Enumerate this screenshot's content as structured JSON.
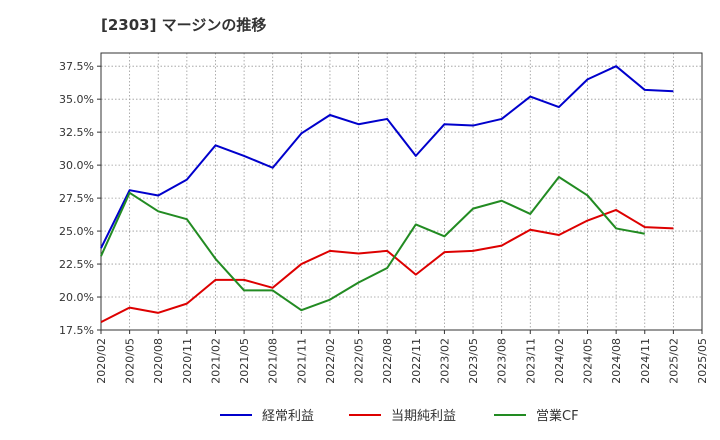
{
  "header": {
    "title": "[2303]  マージンの推移"
  },
  "chart_data": {
    "type": "line",
    "title": "[2303]  マージンの推移",
    "xlabel": "",
    "ylabel": "",
    "x": [
      "2020/02",
      "2020/05",
      "2020/08",
      "2020/11",
      "2021/02",
      "2021/05",
      "2021/08",
      "2021/11",
      "2022/02",
      "2022/05",
      "2022/08",
      "2022/11",
      "2023/02",
      "2023/05",
      "2023/08",
      "2023/11",
      "2024/02",
      "2024/05",
      "2024/08",
      "2024/11",
      "2025/02",
      "2025/05"
    ],
    "ylim": [
      17.5,
      38.5
    ],
    "yticks": [
      "17.5%",
      "20.0%",
      "22.5%",
      "25.0%",
      "27.5%",
      "30.0%",
      "32.5%",
      "35.0%",
      "37.5%"
    ],
    "ytick_values": [
      17.5,
      20.0,
      22.5,
      25.0,
      27.5,
      30.0,
      32.5,
      35.0,
      37.5
    ],
    "grid": true,
    "legend_position": "bottom",
    "series": [
      {
        "name": "経常利益",
        "color": "#0000cc",
        "values": [
          23.7,
          28.1,
          27.7,
          28.9,
          31.5,
          30.7,
          29.8,
          32.4,
          33.8,
          33.1,
          33.5,
          30.7,
          33.1,
          33.0,
          33.5,
          35.2,
          34.4,
          36.5,
          37.5,
          35.7,
          35.6,
          null
        ]
      },
      {
        "name": "当期純利益",
        "color": "#dd0000",
        "values": [
          18.1,
          19.2,
          18.8,
          19.5,
          21.3,
          21.3,
          20.7,
          22.5,
          23.5,
          23.3,
          23.5,
          21.7,
          23.4,
          23.5,
          23.9,
          25.1,
          24.7,
          25.8,
          26.6,
          25.3,
          25.2,
          null
        ]
      },
      {
        "name": "営業CF",
        "color": "#228b22",
        "values": [
          23.1,
          27.9,
          26.5,
          25.9,
          22.9,
          20.5,
          20.5,
          19.0,
          19.8,
          21.1,
          22.2,
          25.5,
          24.6,
          26.7,
          27.3,
          26.3,
          29.1,
          27.7,
          25.2,
          24.8,
          null,
          null
        ]
      }
    ]
  }
}
